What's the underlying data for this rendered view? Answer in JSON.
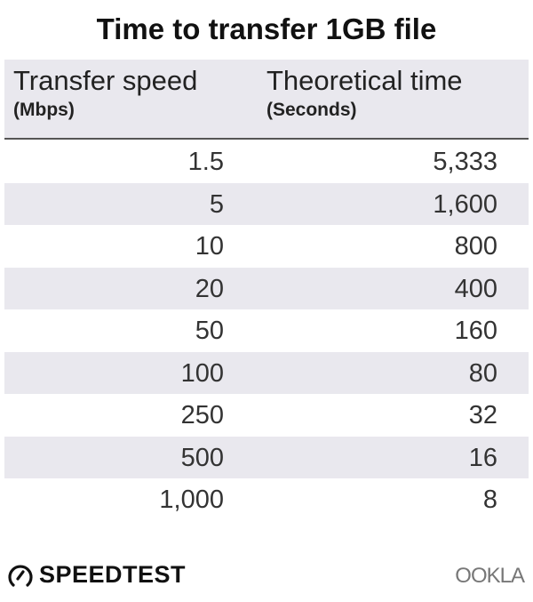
{
  "title": "Time to transfer 1GB file",
  "chart_data": {
    "type": "table",
    "title": "Time to transfer 1GB file",
    "columns": [
      {
        "label": "Transfer speed",
        "unit": "(Mbps)"
      },
      {
        "label": "Theoretical time",
        "unit": "(Seconds)"
      }
    ],
    "rows": [
      [
        "1.5",
        "5,333"
      ],
      [
        "5",
        "1,600"
      ],
      [
        "10",
        "800"
      ],
      [
        "20",
        "400"
      ],
      [
        "50",
        "160"
      ],
      [
        "100",
        "80"
      ],
      [
        "250",
        "32"
      ],
      [
        "500",
        "16"
      ],
      [
        "1,000",
        "8"
      ]
    ],
    "stripe_color": "#e9e8ee"
  },
  "logos": {
    "speedtest": "SPEEDTEST",
    "ookla": "OOKLA"
  }
}
